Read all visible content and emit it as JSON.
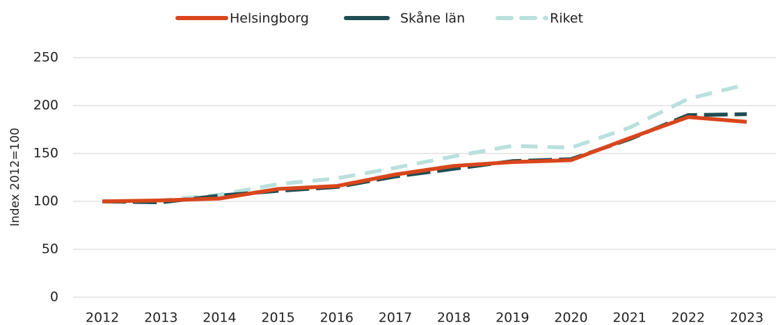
{
  "chart_data": {
    "type": "line",
    "y_label": "Index 2012=100",
    "categories": [
      "2012",
      "2013",
      "2014",
      "2015",
      "2016",
      "2017",
      "2018",
      "2019",
      "2020",
      "2021",
      "2022",
      "2023"
    ],
    "series": [
      {
        "name": "Helsingborg",
        "color": "#d9461c",
        "style": "solid",
        "values": [
          100,
          101,
          103,
          113,
          116,
          128,
          137,
          141,
          143,
          166,
          188,
          183
        ]
      },
      {
        "name": "Skåne län",
        "color": "#1f4e52",
        "style": "dashed",
        "values": [
          100,
          99,
          106,
          111,
          115,
          126,
          134,
          142,
          144,
          165,
          190,
          191
        ]
      },
      {
        "name": "Riket",
        "color": "#b9e0dc",
        "style": "dashed-light",
        "values": [
          100,
          101,
          107,
          118,
          124,
          135,
          147,
          158,
          156,
          177,
          207,
          222
        ]
      }
    ],
    "ylim": [
      0,
      250
    ],
    "yticks": [
      0,
      50,
      100,
      150,
      200,
      250
    ],
    "grid": true,
    "legend": "top"
  }
}
